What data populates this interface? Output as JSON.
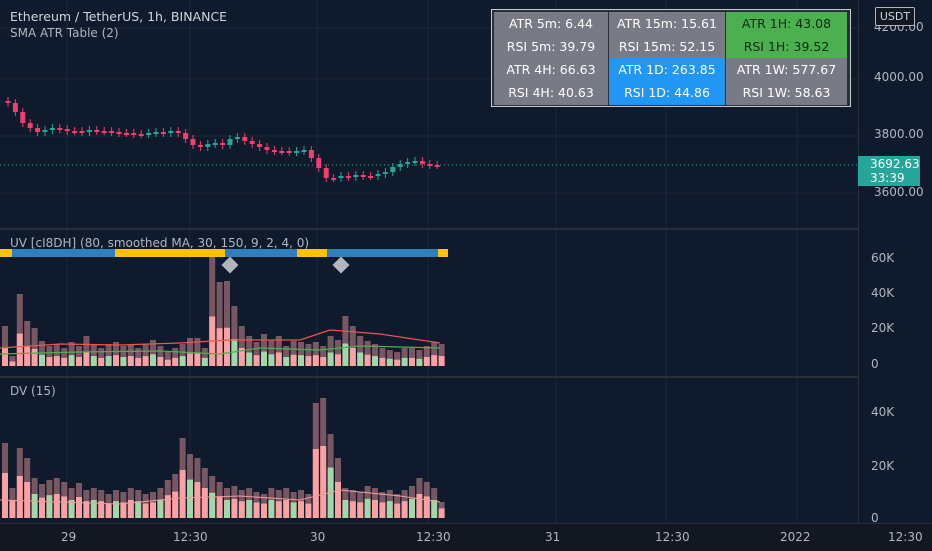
{
  "chart_header": {
    "symbol_title": "Ethereum / TetherUS, 1h, BINANCE",
    "indicator_label": "SMA ATR Table (2)"
  },
  "currency_button": "USDT",
  "atr_table": {
    "atr_5m": "ATR 5m: 6.44",
    "atr_15m": "ATR 15m: 15.61",
    "atr_1h": "ATR 1H: 43.08",
    "rsi_5m": "RSI 5m: 39.79",
    "rsi_15m": "RSI 15m: 52.15",
    "rsi_1h": "RSI 1H: 39.52",
    "atr_4h": "ATR 4H: 66.63",
    "atr_1d": "ATR 1D: 263.85",
    "atr_1w": "ATR 1W: 577.67",
    "rsi_4h": "RSI 4H: 40.63",
    "rsi_1d": "RSI 1D: 44.86",
    "rsi_1w": "RSI 1W: 58.63"
  },
  "price_axis": {
    "ticks": [
      "4200.00",
      "4000.00",
      "3800.00",
      "3600.00"
    ],
    "last_price": "3692.63",
    "countdown": "33:39"
  },
  "uv_pane": {
    "legend": "UV [cI8DH] (80, smoothed MA, 30, 150, 9, 2, 4, 0)",
    "ticks": [
      "60K",
      "40K",
      "20K",
      "0"
    ]
  },
  "dv_pane": {
    "legend": "DV (15)",
    "ticks": [
      "40K",
      "20K",
      "0"
    ]
  },
  "time_axis": {
    "labels": [
      "29",
      "12:30",
      "30",
      "12:30",
      "31",
      "12:30",
      "2022",
      "12:30"
    ]
  },
  "colors": {
    "up": "#26a69a",
    "down": "#f23d6d",
    "volume_up": "#a5d6a7",
    "volume_down": "#faa1a4",
    "band_yellow": "#ffc107",
    "band_blue": "#2f7fbf",
    "accent_green": "#4caf50",
    "accent_blue": "#2196f3",
    "accent_gray": "#787b86"
  },
  "chart_data": [
    {
      "type": "candlestick",
      "title": "Ethereum / TetherUS, 1h, BINANCE",
      "ylim": [
        3540,
        4260
      ],
      "last": 3692.63
    },
    {
      "type": "bar",
      "title": "UV",
      "ylim": [
        0,
        68000
      ]
    },
    {
      "type": "bar",
      "title": "DV (15)",
      "ylim": [
        0,
        48000
      ]
    }
  ]
}
